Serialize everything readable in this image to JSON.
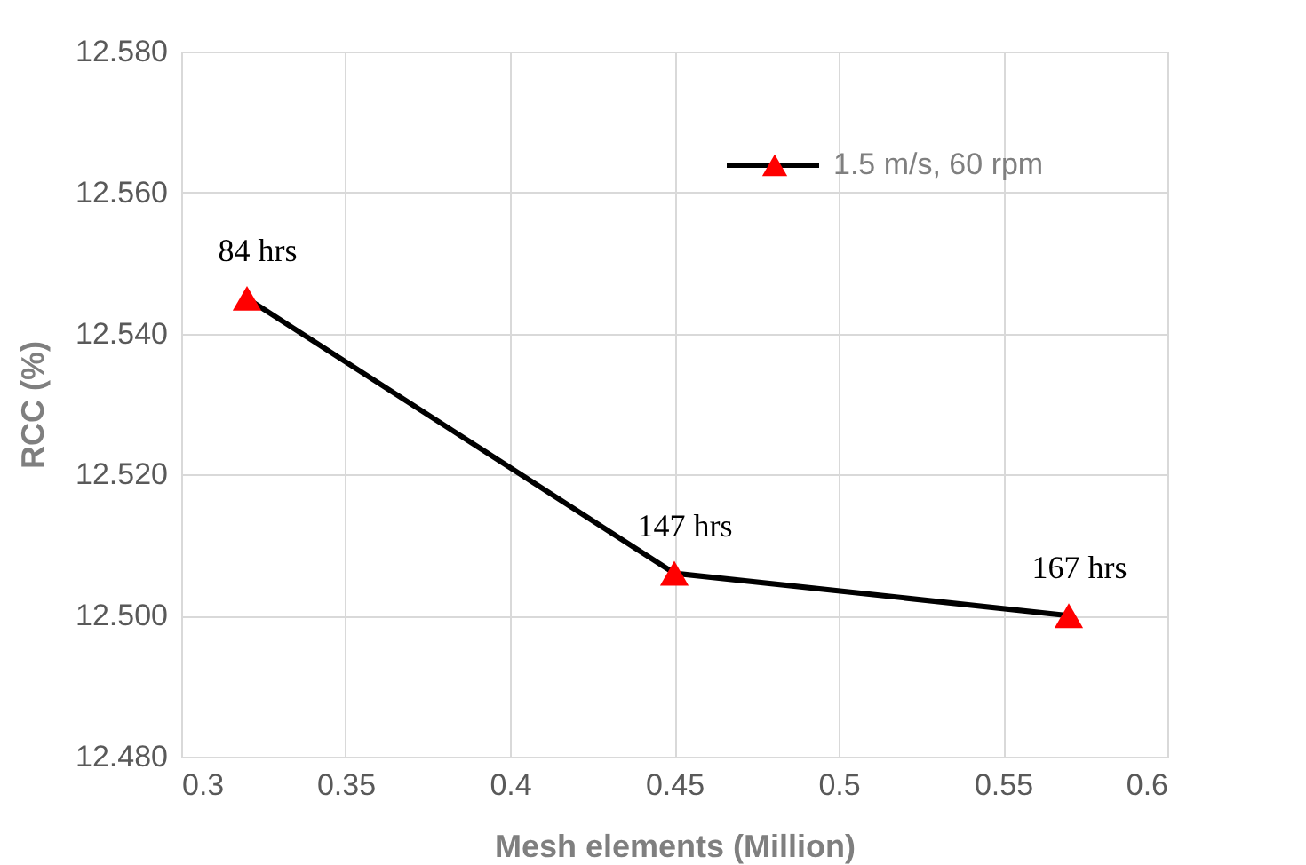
{
  "chart_data": {
    "type": "line",
    "xlabel": "Mesh elements (Million)",
    "ylabel": "RCC (%)",
    "x": [
      0.32,
      0.45,
      0.57
    ],
    "series": [
      {
        "name": "1.5 m/s, 60 rpm",
        "color": "#000000",
        "colors": [
          "#ff0000",
          "#ff0000",
          "#ff0000"
        ],
        "values": [
          12.545,
          12.506,
          12.5
        ]
      }
    ],
    "xlim": [
      0.3,
      0.6
    ],
    "xticks": [
      0.3,
      0.35,
      0.4,
      0.45,
      0.5,
      0.55,
      0.6
    ],
    "ylim": [
      12.48,
      12.58
    ],
    "yticks": [
      {
        "value": 12.48,
        "label": "12.480"
      },
      {
        "value": 12.5,
        "label": "12.500"
      },
      {
        "value": 12.52,
        "label": "12.520"
      },
      {
        "value": 12.54,
        "label": "12.540"
      },
      {
        "value": 12.56,
        "label": "12.560"
      },
      {
        "value": 12.58,
        "label": "12.580"
      }
    ],
    "annotations": [
      {
        "text": "84 hrs",
        "x": 0.32,
        "y": 12.545
      },
      {
        "text": "147 hrs",
        "x": 0.45,
        "y": 12.506
      },
      {
        "text": "167 hrs",
        "x": 0.57,
        "y": 12.5
      }
    ],
    "grid": true,
    "legend": "top right",
    "marker": "triangle",
    "line_style": "solid"
  }
}
